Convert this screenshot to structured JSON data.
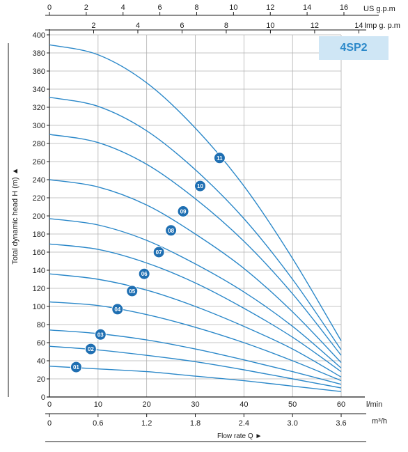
{
  "chart_data": {
    "type": "line",
    "model": "4SP2",
    "ylabel": "Total dynamic head H (m)",
    "ylabel_arrow": "▲",
    "xlabel": "Flow rate Q",
    "xlabel_arrow": "►",
    "ylim": [
      0,
      400
    ],
    "y_ticks": [
      0,
      20,
      40,
      60,
      80,
      100,
      120,
      140,
      160,
      180,
      200,
      220,
      240,
      260,
      280,
      300,
      320,
      340,
      360,
      380,
      400
    ],
    "x_lmin": {
      "unit": "l/min",
      "range": [
        0,
        60
      ],
      "ticks": [
        0,
        10,
        20,
        30,
        40,
        50,
        60
      ]
    },
    "x_m3h": {
      "unit": "m³/h",
      "range": [
        0,
        3.6
      ],
      "ticks": [
        "0",
        "0.6",
        "1.2",
        "1.8",
        "2.4",
        "3.0",
        "3.6"
      ]
    },
    "x_us_gpm": {
      "unit": "US g.p.m",
      "range": [
        0,
        15.85
      ],
      "ticks": [
        0,
        2,
        4,
        6,
        8,
        10,
        12,
        14,
        16
      ]
    },
    "x_imp_gpm": {
      "unit": "Imp g. p.m",
      "range": [
        0,
        13.2
      ],
      "ticks": [
        2,
        4,
        6,
        8,
        10,
        12,
        14
      ]
    },
    "series_color": "#2b88c9",
    "grid_color": "#b0b0b0",
    "grid": true,
    "series": [
      {
        "name": "01",
        "x": [
          0,
          10,
          20,
          30,
          40,
          50,
          60
        ],
        "y": [
          34,
          31,
          28,
          23,
          18,
          12,
          6
        ],
        "marker": [
          5.5,
          33
        ]
      },
      {
        "name": "02",
        "x": [
          0,
          10,
          20,
          30,
          40,
          50,
          60
        ],
        "y": [
          56,
          52,
          46,
          39,
          30,
          20,
          10
        ],
        "marker": [
          8.5,
          53
        ]
      },
      {
        "name": "03",
        "x": [
          0,
          10,
          20,
          30,
          40,
          50,
          60
        ],
        "y": [
          74,
          70,
          63,
          53,
          41,
          28,
          14
        ],
        "marker": [
          10.5,
          69
        ]
      },
      {
        "name": "04",
        "x": [
          0,
          10,
          20,
          30,
          40,
          50,
          60
        ],
        "y": [
          105,
          101,
          91,
          77,
          60,
          40,
          18
        ],
        "marker": [
          14,
          97
        ]
      },
      {
        "name": "05",
        "x": [
          0,
          10,
          20,
          30,
          40,
          50,
          60
        ],
        "y": [
          136,
          130,
          118,
          100,
          78,
          53,
          22
        ],
        "marker": [
          17,
          117
        ]
      },
      {
        "name": "06",
        "x": [
          0,
          10,
          20,
          30,
          40,
          50,
          60
        ],
        "y": [
          169,
          163,
          148,
          126,
          98,
          66,
          28
        ],
        "marker": [
          19.5,
          136
        ]
      },
      {
        "name": "07",
        "x": [
          0,
          10,
          20,
          30,
          40,
          50,
          60
        ],
        "y": [
          197,
          190,
          173,
          147,
          116,
          78,
          32
        ],
        "marker": [
          22.5,
          160
        ]
      },
      {
        "name": "08",
        "x": [
          0,
          10,
          20,
          30,
          40,
          50,
          60
        ],
        "y": [
          240,
          232,
          212,
          180,
          142,
          94,
          38
        ],
        "marker": [
          25,
          184
        ]
      },
      {
        "name": "09",
        "x": [
          0,
          10,
          20,
          30,
          40,
          50,
          60
        ],
        "y": [
          290,
          281,
          257,
          219,
          172,
          114,
          46
        ],
        "marker": [
          27.5,
          205
        ]
      },
      {
        "name": "10",
        "x": [
          0,
          10,
          20,
          30,
          40,
          50,
          60
        ],
        "y": [
          331,
          321,
          294,
          251,
          197,
          130,
          52
        ],
        "marker": [
          31,
          233
        ]
      },
      {
        "name": "11",
        "x": [
          0,
          10,
          20,
          30,
          40,
          50,
          60
        ],
        "y": [
          389,
          378,
          347,
          297,
          233,
          153,
          62
        ],
        "marker": [
          35,
          264
        ]
      }
    ]
  }
}
